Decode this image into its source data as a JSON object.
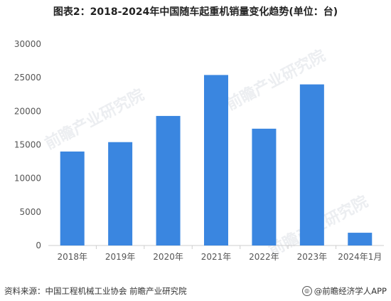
{
  "title": "图表2：2018-2024年中国随车起重机销量变化趋势(单位：台)",
  "footer": {
    "source": "资料来源：中国工程机械工业协会 前瞻产业研究院",
    "brand": "@前瞻经济学人APP",
    "brand_icon": "前瞻-logo-icon"
  },
  "watermark": "前瞻产业研究院",
  "colors": {
    "bar": "#3a86e0",
    "grid": "#e6e6e6",
    "axis": "#cfcfcf"
  },
  "chart_data": {
    "type": "bar",
    "categories": [
      "2018年",
      "2019年",
      "2020年",
      "2021年",
      "2022年",
      "2023年",
      "2024年1月"
    ],
    "values": [
      14000,
      15400,
      19300,
      25400,
      17400,
      24000,
      1900
    ],
    "ylim": [
      0,
      30000
    ],
    "yticks": [
      0,
      5000,
      10000,
      15000,
      20000,
      25000,
      30000
    ],
    "grid": false
  }
}
